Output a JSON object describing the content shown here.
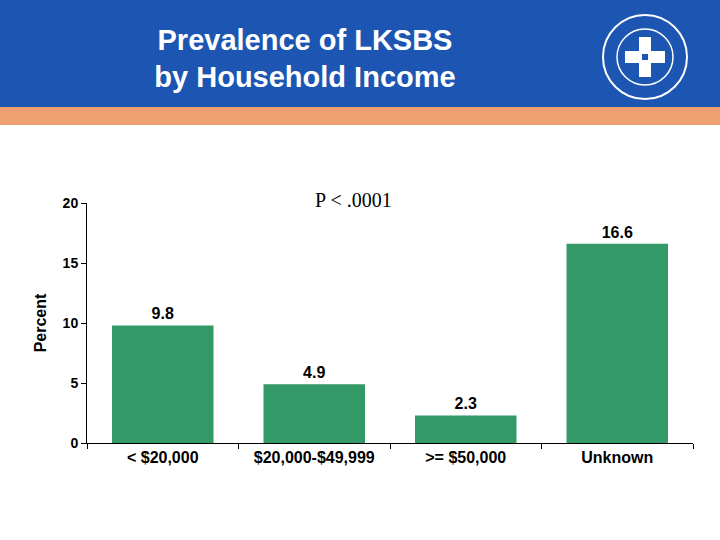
{
  "chart_data": {
    "type": "bar",
    "title": "Prevalence of LKSBS\nby Household Income",
    "annotations": [
      "P < .0001"
    ],
    "y_label": "Percent",
    "categories": [
      "< $20,000",
      "$20,000-$49,999",
      ">= $50,000",
      "Unknown"
    ],
    "values": [
      9.8,
      4.9,
      2.3,
      16.6
    ],
    "color": "#339966",
    "ylim": [
      0,
      20
    ],
    "yticks": [
      0,
      5,
      10,
      15,
      20
    ],
    "grid": false,
    "data_labels": true
  }
}
